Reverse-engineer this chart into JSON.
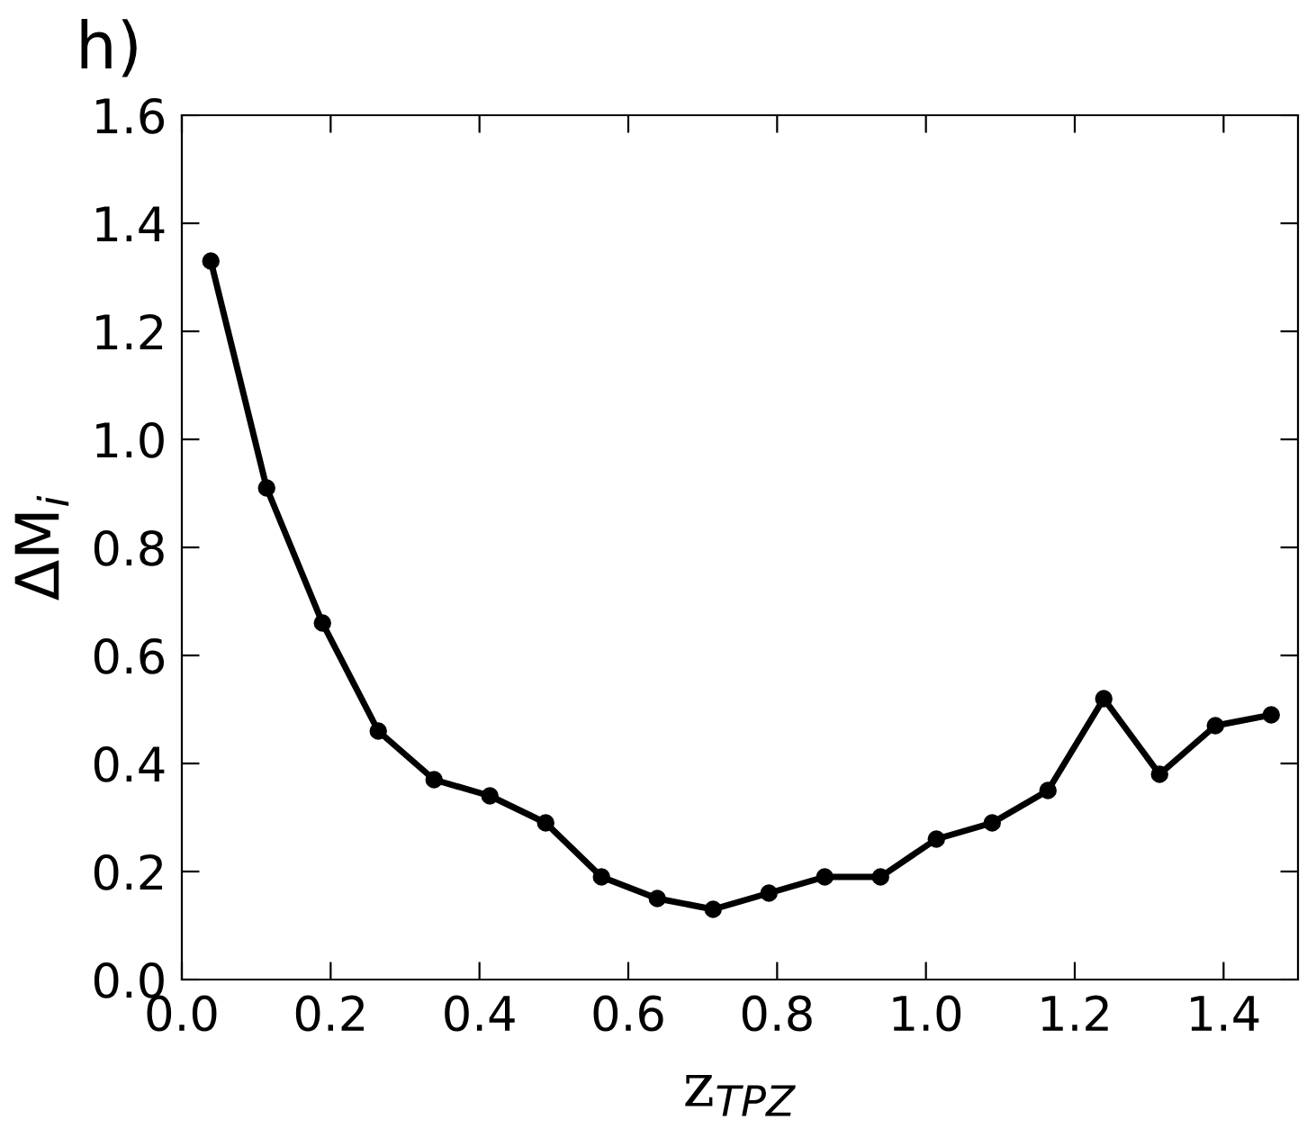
{
  "chart_data": {
    "type": "line",
    "title": "h)",
    "xlabel": "z$_{TPZ}$",
    "ylabel": "ΔM$_{i}$",
    "x": [
      0.039,
      0.114,
      0.189,
      0.264,
      0.339,
      0.414,
      0.489,
      0.564,
      0.639,
      0.714,
      0.789,
      0.864,
      0.939,
      1.014,
      1.089,
      1.164,
      1.239,
      1.314,
      1.389,
      1.464
    ],
    "series": [
      {
        "color": "#000000",
        "values": [
          1.33,
          0.91,
          0.66,
          0.46,
          0.37,
          0.34,
          0.29,
          0.19,
          0.15,
          0.13,
          0.16,
          0.19,
          0.19,
          0.26,
          0.29,
          0.35,
          0.52,
          0.38,
          0.47,
          0.49
        ]
      }
    ],
    "marker": "circle",
    "line_style": "solid",
    "grid": false,
    "legend": false,
    "xlim": [
      0.0,
      1.5
    ],
    "ylim": [
      0.0,
      1.6
    ],
    "xticks": [
      {
        "value": 0.0,
        "label": "0.0"
      },
      {
        "value": 0.2,
        "label": "0.2"
      },
      {
        "value": 0.4,
        "label": "0.4"
      },
      {
        "value": 0.6,
        "label": "0.6"
      },
      {
        "value": 0.8,
        "label": "0.8"
      },
      {
        "value": 1.0,
        "label": "1.0"
      },
      {
        "value": 1.2,
        "label": "1.2"
      },
      {
        "value": 1.4,
        "label": "1.4"
      }
    ],
    "yticks": [
      {
        "value": 0.0,
        "label": "0.0"
      },
      {
        "value": 0.2,
        "label": "0.2"
      },
      {
        "value": 0.4,
        "label": "0.4"
      },
      {
        "value": 0.6,
        "label": "0.6"
      },
      {
        "value": 0.8,
        "label": "0.8"
      },
      {
        "value": 1.0,
        "label": "1.0"
      },
      {
        "value": 1.2,
        "label": "1.2"
      },
      {
        "value": 1.4,
        "label": "1.4"
      },
      {
        "value": 1.6,
        "label": "1.6"
      }
    ]
  }
}
